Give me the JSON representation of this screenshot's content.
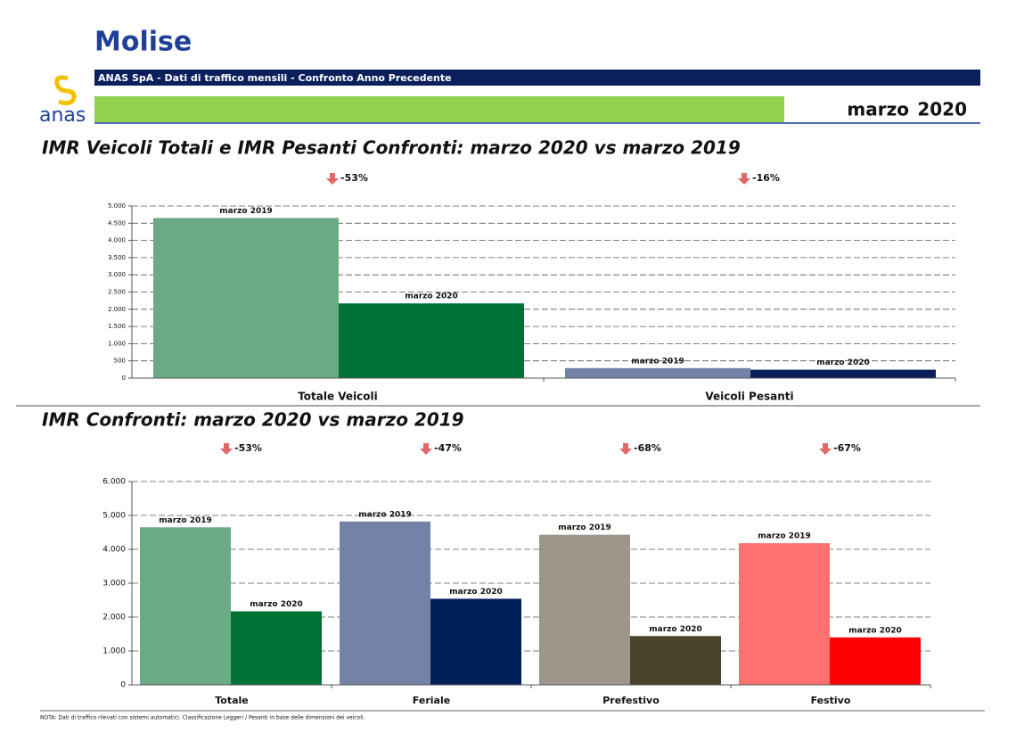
{
  "header": {
    "title": "Molise",
    "banner": "ANAS SpA - Dati di traffico mensili - Confronto Anno Precedente",
    "logo": "anas",
    "month": "marzo",
    "year": "2020"
  },
  "chart_data": [
    {
      "type": "bar",
      "title": "IMR Veicoli Totali e IMR Pesanti Confronti: marzo 2020 vs marzo 2019",
      "categories": [
        "Totale Veicoli",
        "Veicoli Pesanti"
      ],
      "series": [
        {
          "name": "marzo 2019",
          "colors": [
            "#6aaa84",
            "#7383a8"
          ],
          "values": [
            4650,
            290
          ]
        },
        {
          "name": "marzo 2020",
          "colors": [
            "#007236",
            "#0a1f5c"
          ],
          "values": [
            2170,
            244
          ]
        }
      ],
      "changes": {
        "values": [
          -53,
          -16
        ],
        "value_labels": [
          "-53%",
          "-16%"
        ]
      },
      "ylim": [
        0,
        5000
      ],
      "yticks": [
        0,
        500,
        {
          "value": 1000,
          "label": "1.000"
        },
        {
          "value": 1500,
          "label": "1.500"
        },
        {
          "value": 2000,
          "label": "2.000"
        },
        {
          "value": 2500,
          "label": "2.500"
        },
        {
          "value": 3000,
          "label": "3.000"
        },
        {
          "value": 3500,
          "label": "3.500"
        },
        {
          "value": 4000,
          "label": "4.000"
        },
        {
          "value": 4500,
          "label": "4.500"
        },
        {
          "value": 5000,
          "label": "5.000"
        }
      ],
      "grid": true
    },
    {
      "type": "bar",
      "title": "IMR Confronti: marzo 2020 vs marzo 2019",
      "categories": [
        "Totale",
        "Feriale",
        "Prefestivo",
        "Festivo"
      ],
      "series": [
        {
          "name": "marzo 2019",
          "colors": [
            "#6aaa84",
            "#7383a8",
            "#9c978a",
            "#ff7070"
          ],
          "values": [
            4650,
            4820,
            4430,
            4180
          ]
        },
        {
          "name": "marzo 2020",
          "colors": [
            "#007236",
            "#00205b",
            "#4a432c",
            "#ff0000"
          ],
          "values": [
            2170,
            2540,
            1440,
            1400
          ]
        }
      ],
      "changes": {
        "values": [
          -53,
          -47,
          -68,
          -67
        ],
        "value_labels": [
          "-53%",
          "-47%",
          "-68%",
          "-67%"
        ]
      },
      "ylim": [
        0,
        6000
      ],
      "yticks": [
        0,
        {
          "value": 1000,
          "label": "1.000"
        },
        {
          "value": 2000,
          "label": "2.000"
        },
        {
          "value": 3000,
          "label": "3.000"
        },
        {
          "value": 4000,
          "label": "4.000"
        },
        {
          "value": 5000,
          "label": "5.000"
        },
        {
          "value": 6000,
          "label": "6.000"
        }
      ],
      "grid": true
    }
  ],
  "footnote": "NOTA: Dati di traffico rilevati con sistemi automatici. Classificazione Leggeri / Pesanti in base delle dimensioni dei veicoli."
}
